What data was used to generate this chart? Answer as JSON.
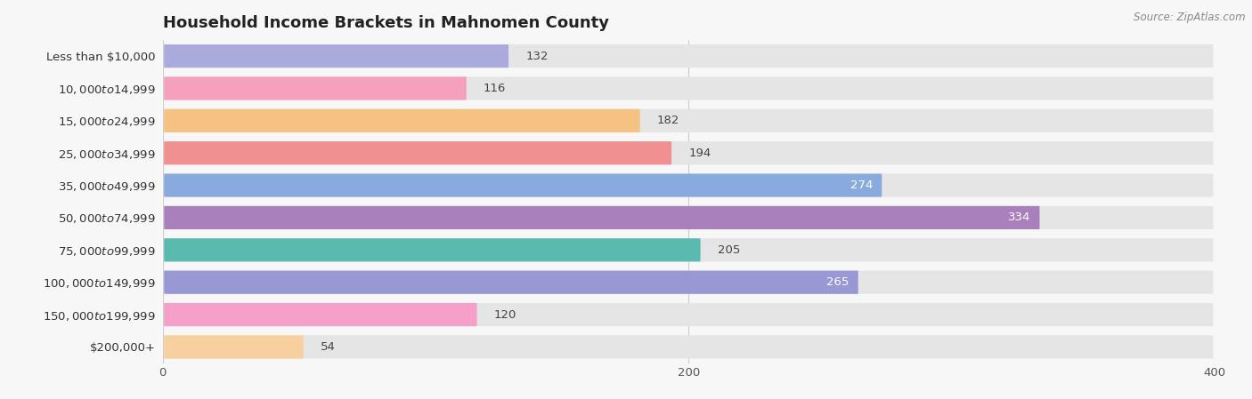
{
  "title": "Household Income Brackets in Mahnomen County",
  "source": "Source: ZipAtlas.com",
  "categories": [
    "Less than $10,000",
    "$10,000 to $14,999",
    "$15,000 to $24,999",
    "$25,000 to $34,999",
    "$35,000 to $49,999",
    "$50,000 to $74,999",
    "$75,000 to $99,999",
    "$100,000 to $149,999",
    "$150,000 to $199,999",
    "$200,000+"
  ],
  "values": [
    132,
    116,
    182,
    194,
    274,
    334,
    205,
    265,
    120,
    54
  ],
  "bar_colors": [
    "#aaaadc",
    "#f5a0bc",
    "#f5c282",
    "#f09090",
    "#88aadc",
    "#aa80bc",
    "#5abab0",
    "#9898d4",
    "#f5a0c8",
    "#f8d0a0"
  ],
  "xlim": [
    0,
    400
  ],
  "xticks": [
    0,
    200,
    400
  ],
  "background_color": "#f7f7f7",
  "bar_bg_color": "#e5e5e5",
  "title_fontsize": 13,
  "label_fontsize": 9.5,
  "value_fontsize": 9.5,
  "bar_height": 0.72,
  "inside_label_threshold": 220
}
